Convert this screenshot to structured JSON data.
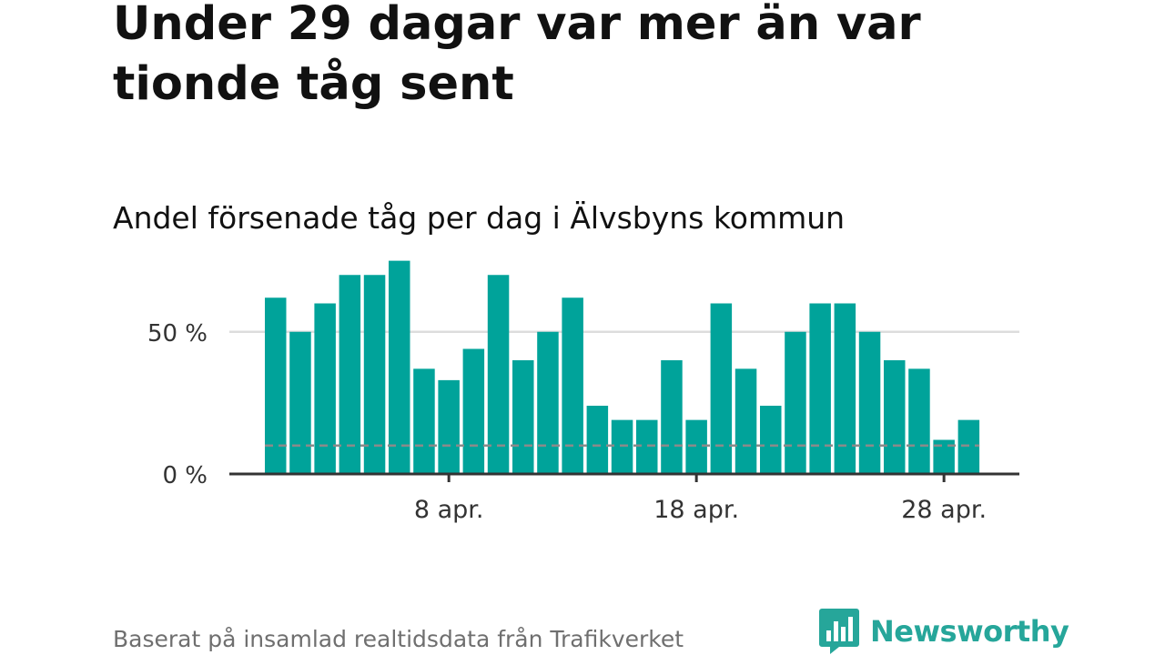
{
  "title": "Under 29 dagar var mer än var tionde tåg sent",
  "subtitle": "Andel försenade tåg per dag i Älvsbyns kommun",
  "footer": "Baserat på insamlad realtidsdata från Trafikverket",
  "brand": {
    "name": "Newsworthy",
    "color": "#26a69a"
  },
  "chart_data": {
    "type": "bar",
    "x": [
      "2024-04-01",
      "2024-04-02",
      "2024-04-03",
      "2024-04-04",
      "2024-04-05",
      "2024-04-06",
      "2024-04-07",
      "2024-04-08",
      "2024-04-09",
      "2024-04-10",
      "2024-04-11",
      "2024-04-12",
      "2024-04-13",
      "2024-04-14",
      "2024-04-15",
      "2024-04-16",
      "2024-04-17",
      "2024-04-18",
      "2024-04-19",
      "2024-04-20",
      "2024-04-21",
      "2024-04-22",
      "2024-04-23",
      "2024-04-24",
      "2024-04-25",
      "2024-04-26",
      "2024-04-27",
      "2024-04-28",
      "2024-04-29"
    ],
    "values": [
      62,
      50,
      60,
      70,
      70,
      75,
      37,
      33,
      44,
      70,
      40,
      50,
      62,
      24,
      19,
      19,
      40,
      19,
      60,
      37,
      24,
      50,
      60,
      60,
      50,
      40,
      37,
      12,
      19
    ],
    "ylim": [
      0,
      80
    ],
    "yticks": [
      0,
      50
    ],
    "ytick_labels": [
      "0 %",
      "50 %"
    ],
    "xtick_dates": [
      "2024-04-08",
      "2024-04-18",
      "2024-04-28"
    ],
    "xtick_labels": [
      "8 apr.",
      "18 apr.",
      "28 apr."
    ],
    "reference_line": 10,
    "bar_color": "#00a39a",
    "reference_color": "#8a8a8a",
    "grid_color": "#dddddd",
    "axis_color": "#333333",
    "grid": true
  }
}
